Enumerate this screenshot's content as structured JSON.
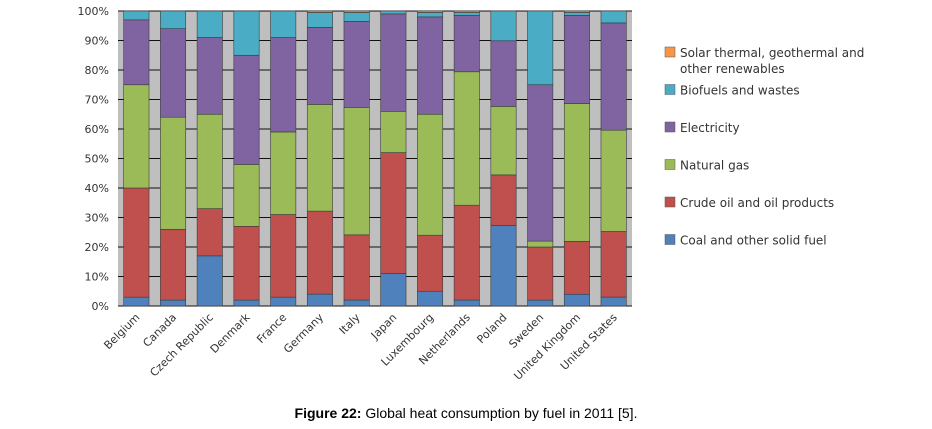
{
  "caption": {
    "label": "Figure 22:",
    "text": " Global heat consumption by fuel in 2011 [5]."
  },
  "chart_data": {
    "type": "bar",
    "stacked": true,
    "percent": true,
    "title": "",
    "xlabel": "",
    "ylabel": "",
    "ylim": [
      0,
      100
    ],
    "yticks": [
      "0%",
      "10%",
      "20%",
      "30%",
      "40%",
      "50%",
      "60%",
      "70%",
      "80%",
      "90%",
      "100%"
    ],
    "grid": "horizontal",
    "legend_position": "right",
    "categories": [
      "Belgium",
      "Canada",
      "Czech Republic",
      "Denmark",
      "France",
      "Germany",
      "Italy",
      "Japan",
      "Luxembourg",
      "Netherlands",
      "Poland",
      "Sweden",
      "United Kingdom",
      "United States"
    ],
    "series": [
      {
        "name": "Coal and other solid fuel",
        "color": "#4f81bd",
        "values": [
          3,
          2,
          17,
          2,
          3,
          4,
          2,
          11,
          5,
          2,
          27,
          2,
          4,
          3
        ]
      },
      {
        "name": "Crude oil and oil products",
        "color": "#c0504d",
        "values": [
          37,
          24,
          16,
          25,
          28,
          28,
          22,
          41,
          19,
          32,
          17,
          18,
          18,
          22
        ]
      },
      {
        "name": "Natural gas",
        "color": "#9bbb59",
        "values": [
          35,
          38,
          32,
          21,
          28,
          36,
          43,
          14,
          41,
          45,
          23,
          2,
          47,
          34
        ]
      },
      {
        "name": "Electricity",
        "color": "#8064a2",
        "values": [
          22,
          30,
          26,
          37,
          32,
          26,
          29,
          33,
          33,
          19,
          22,
          53,
          30,
          36
        ]
      },
      {
        "name": "Biofuels and wastes",
        "color": "#4bacc6",
        "values": [
          3,
          6,
          9,
          15,
          9,
          5,
          3,
          1,
          1.5,
          1,
          10,
          25,
          1,
          4
        ]
      },
      {
        "name": "Solar thermal, geothermal and other renewables",
        "color": "#f79646",
        "values": [
          0,
          0,
          0,
          0,
          0,
          0.5,
          0.5,
          0,
          0.5,
          0.5,
          0,
          0,
          0.5,
          0
        ]
      }
    ]
  }
}
